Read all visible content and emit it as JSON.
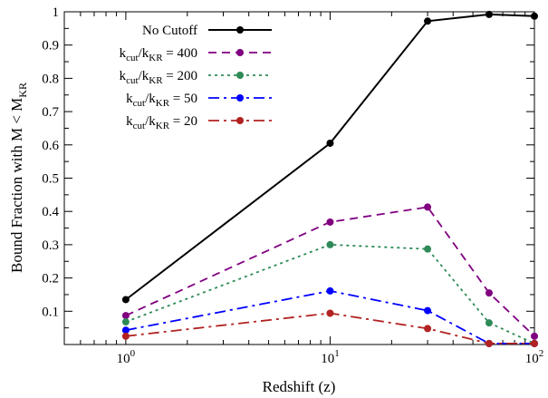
{
  "chart_data": {
    "type": "line",
    "xscale": "log",
    "xlim": [
      0.5,
      100
    ],
    "ylim": [
      0,
      1
    ],
    "xlabel": "Redshift (z)",
    "ylabel": {
      "main": "Bound Fraction with M < M",
      "sub": "KR"
    },
    "x_ticks": [
      {
        "value": 1,
        "base": "10",
        "exp": "0"
      },
      {
        "value": 10,
        "base": "10",
        "exp": "1"
      },
      {
        "value": 100,
        "base": "10",
        "exp": "2"
      }
    ],
    "y_ticks": [
      {
        "value": 0.1,
        "label": "0.1"
      },
      {
        "value": 0.2,
        "label": "0.2"
      },
      {
        "value": 0.3,
        "label": "0.3"
      },
      {
        "value": 0.4,
        "label": "0.4"
      },
      {
        "value": 0.5,
        "label": "0.5"
      },
      {
        "value": 0.6,
        "label": "0.6"
      },
      {
        "value": 0.7,
        "label": "0.7"
      },
      {
        "value": 0.8,
        "label": "0.8"
      },
      {
        "value": 0.9,
        "label": "0.9"
      },
      {
        "value": 1,
        "label": "1"
      }
    ],
    "legend_position": "top-left",
    "grid": false,
    "x": [
      1,
      10,
      30,
      60,
      100
    ],
    "series": [
      {
        "key": "no-cutoff",
        "legend": {
          "text": "No Cutoff"
        },
        "color": "#000000",
        "dash": "solid",
        "values": [
          0.135,
          0.605,
          0.972,
          0.992,
          0.987
        ]
      },
      {
        "key": "kcut-400",
        "legend": {
          "k": "k",
          "cut": "cut",
          "slash": "/k",
          "kr": "KR",
          "rest": " = 400"
        },
        "color": "#800080",
        "dash": "dashed",
        "values": [
          0.087,
          0.368,
          0.413,
          0.155,
          0.025
        ]
      },
      {
        "key": "kcut-200",
        "legend": {
          "k": "k",
          "cut": "cut",
          "slash": "/k",
          "kr": "KR",
          "rest": " = 200"
        },
        "color": "#2e8b57",
        "dash": "dotted",
        "values": [
          0.068,
          0.3,
          0.287,
          0.065,
          0.003
        ]
      },
      {
        "key": "kcut-50",
        "legend": {
          "k": "k",
          "cut": "cut",
          "slash": "/k",
          "kr": "KR",
          "rest": " = 50"
        },
        "color": "#0000ff",
        "dash": "dashdot",
        "values": [
          0.043,
          0.161,
          0.102,
          0.003,
          0.003
        ]
      },
      {
        "key": "kcut-20",
        "legend": {
          "k": "k",
          "cut": "cut",
          "slash": "/k",
          "kr": "KR",
          "rest": " = 20"
        },
        "color": "#b22222",
        "dash": "dashdotlong",
        "values": [
          0.025,
          0.094,
          0.048,
          0.003,
          0.003
        ]
      }
    ]
  }
}
